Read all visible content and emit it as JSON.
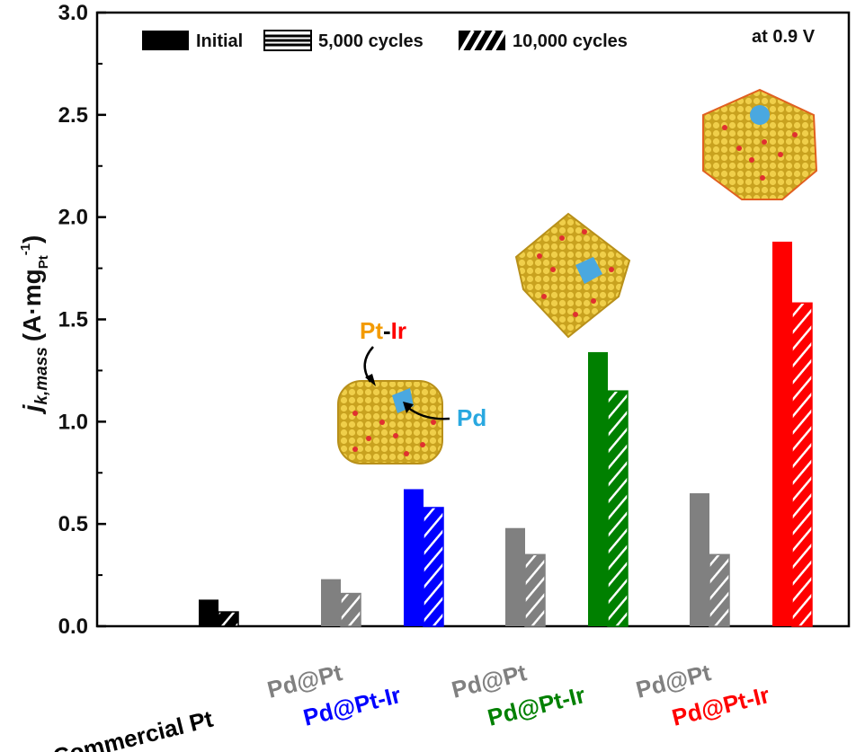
{
  "chart_data": {
    "type": "bar",
    "title": "",
    "annotation": "at 0.9 V",
    "ylabel": {
      "symbol": "j",
      "subscript": "k,mass",
      "unit_open": "(A·mg",
      "unit_sub": "Pt",
      "unit_sup": "-1",
      "unit_close": ")"
    },
    "ylim": [
      0,
      3.0
    ],
    "yticks": [
      "0.0",
      "0.5",
      "1.0",
      "1.5",
      "2.0",
      "2.5",
      "3.0"
    ],
    "legend": {
      "position": "top",
      "entries": [
        {
          "name": "Initial",
          "pattern": "solid"
        },
        {
          "name": "5,000 cycles",
          "pattern": "horizontal-stripes"
        },
        {
          "name": "10,000 cycles",
          "pattern": "diagonal-stripes"
        }
      ]
    },
    "groups": [
      {
        "labels": [
          {
            "text": "Commercial Pt",
            "color": "#000000"
          }
        ],
        "bars": [
          {
            "color": "#000000",
            "values": [
              0.13,
              0.07
            ]
          }
        ]
      },
      {
        "labels": [
          {
            "text": "Pd@Pt",
            "color": "#808080"
          },
          {
            "text": "Pd@Pt-Ir",
            "color": "#0000ff"
          }
        ],
        "bars": [
          {
            "color": "#808080",
            "values": [
              0.23,
              0.16
            ]
          },
          {
            "color": "#0000ff",
            "values": [
              0.67,
              0.58
            ]
          }
        ]
      },
      {
        "labels": [
          {
            "text": "Pd@Pt",
            "color": "#808080"
          },
          {
            "text": "Pd@Pt-Ir",
            "color": "#008000"
          }
        ],
        "bars": [
          {
            "color": "#808080",
            "values": [
              0.48,
              0.35
            ]
          },
          {
            "color": "#008000",
            "values": [
              1.34,
              1.15
            ]
          }
        ]
      },
      {
        "labels": [
          {
            "text": "Pd@Pt",
            "color": "#808080"
          },
          {
            "text": "Pd@Pt-Ir",
            "color": "#ff0000"
          }
        ],
        "bars": [
          {
            "color": "#808080",
            "values": [
              0.65,
              0.35
            ]
          },
          {
            "color": "#ff0000",
            "values": [
              1.88,
              1.58
            ]
          }
        ]
      }
    ],
    "callouts": {
      "pt_ir": [
        {
          "text": "Pt",
          "color": "#f39a00"
        },
        {
          "text": "-",
          "color": "#000000"
        },
        {
          "text": "Ir",
          "color": "#ff0000"
        }
      ],
      "pd": {
        "text": "Pd",
        "color": "#29a8e0"
      }
    },
    "illustrations": [
      "cube-nanocrystal",
      "octahedron-nanocrystal",
      "icosahedron-nanocrystal"
    ]
  }
}
